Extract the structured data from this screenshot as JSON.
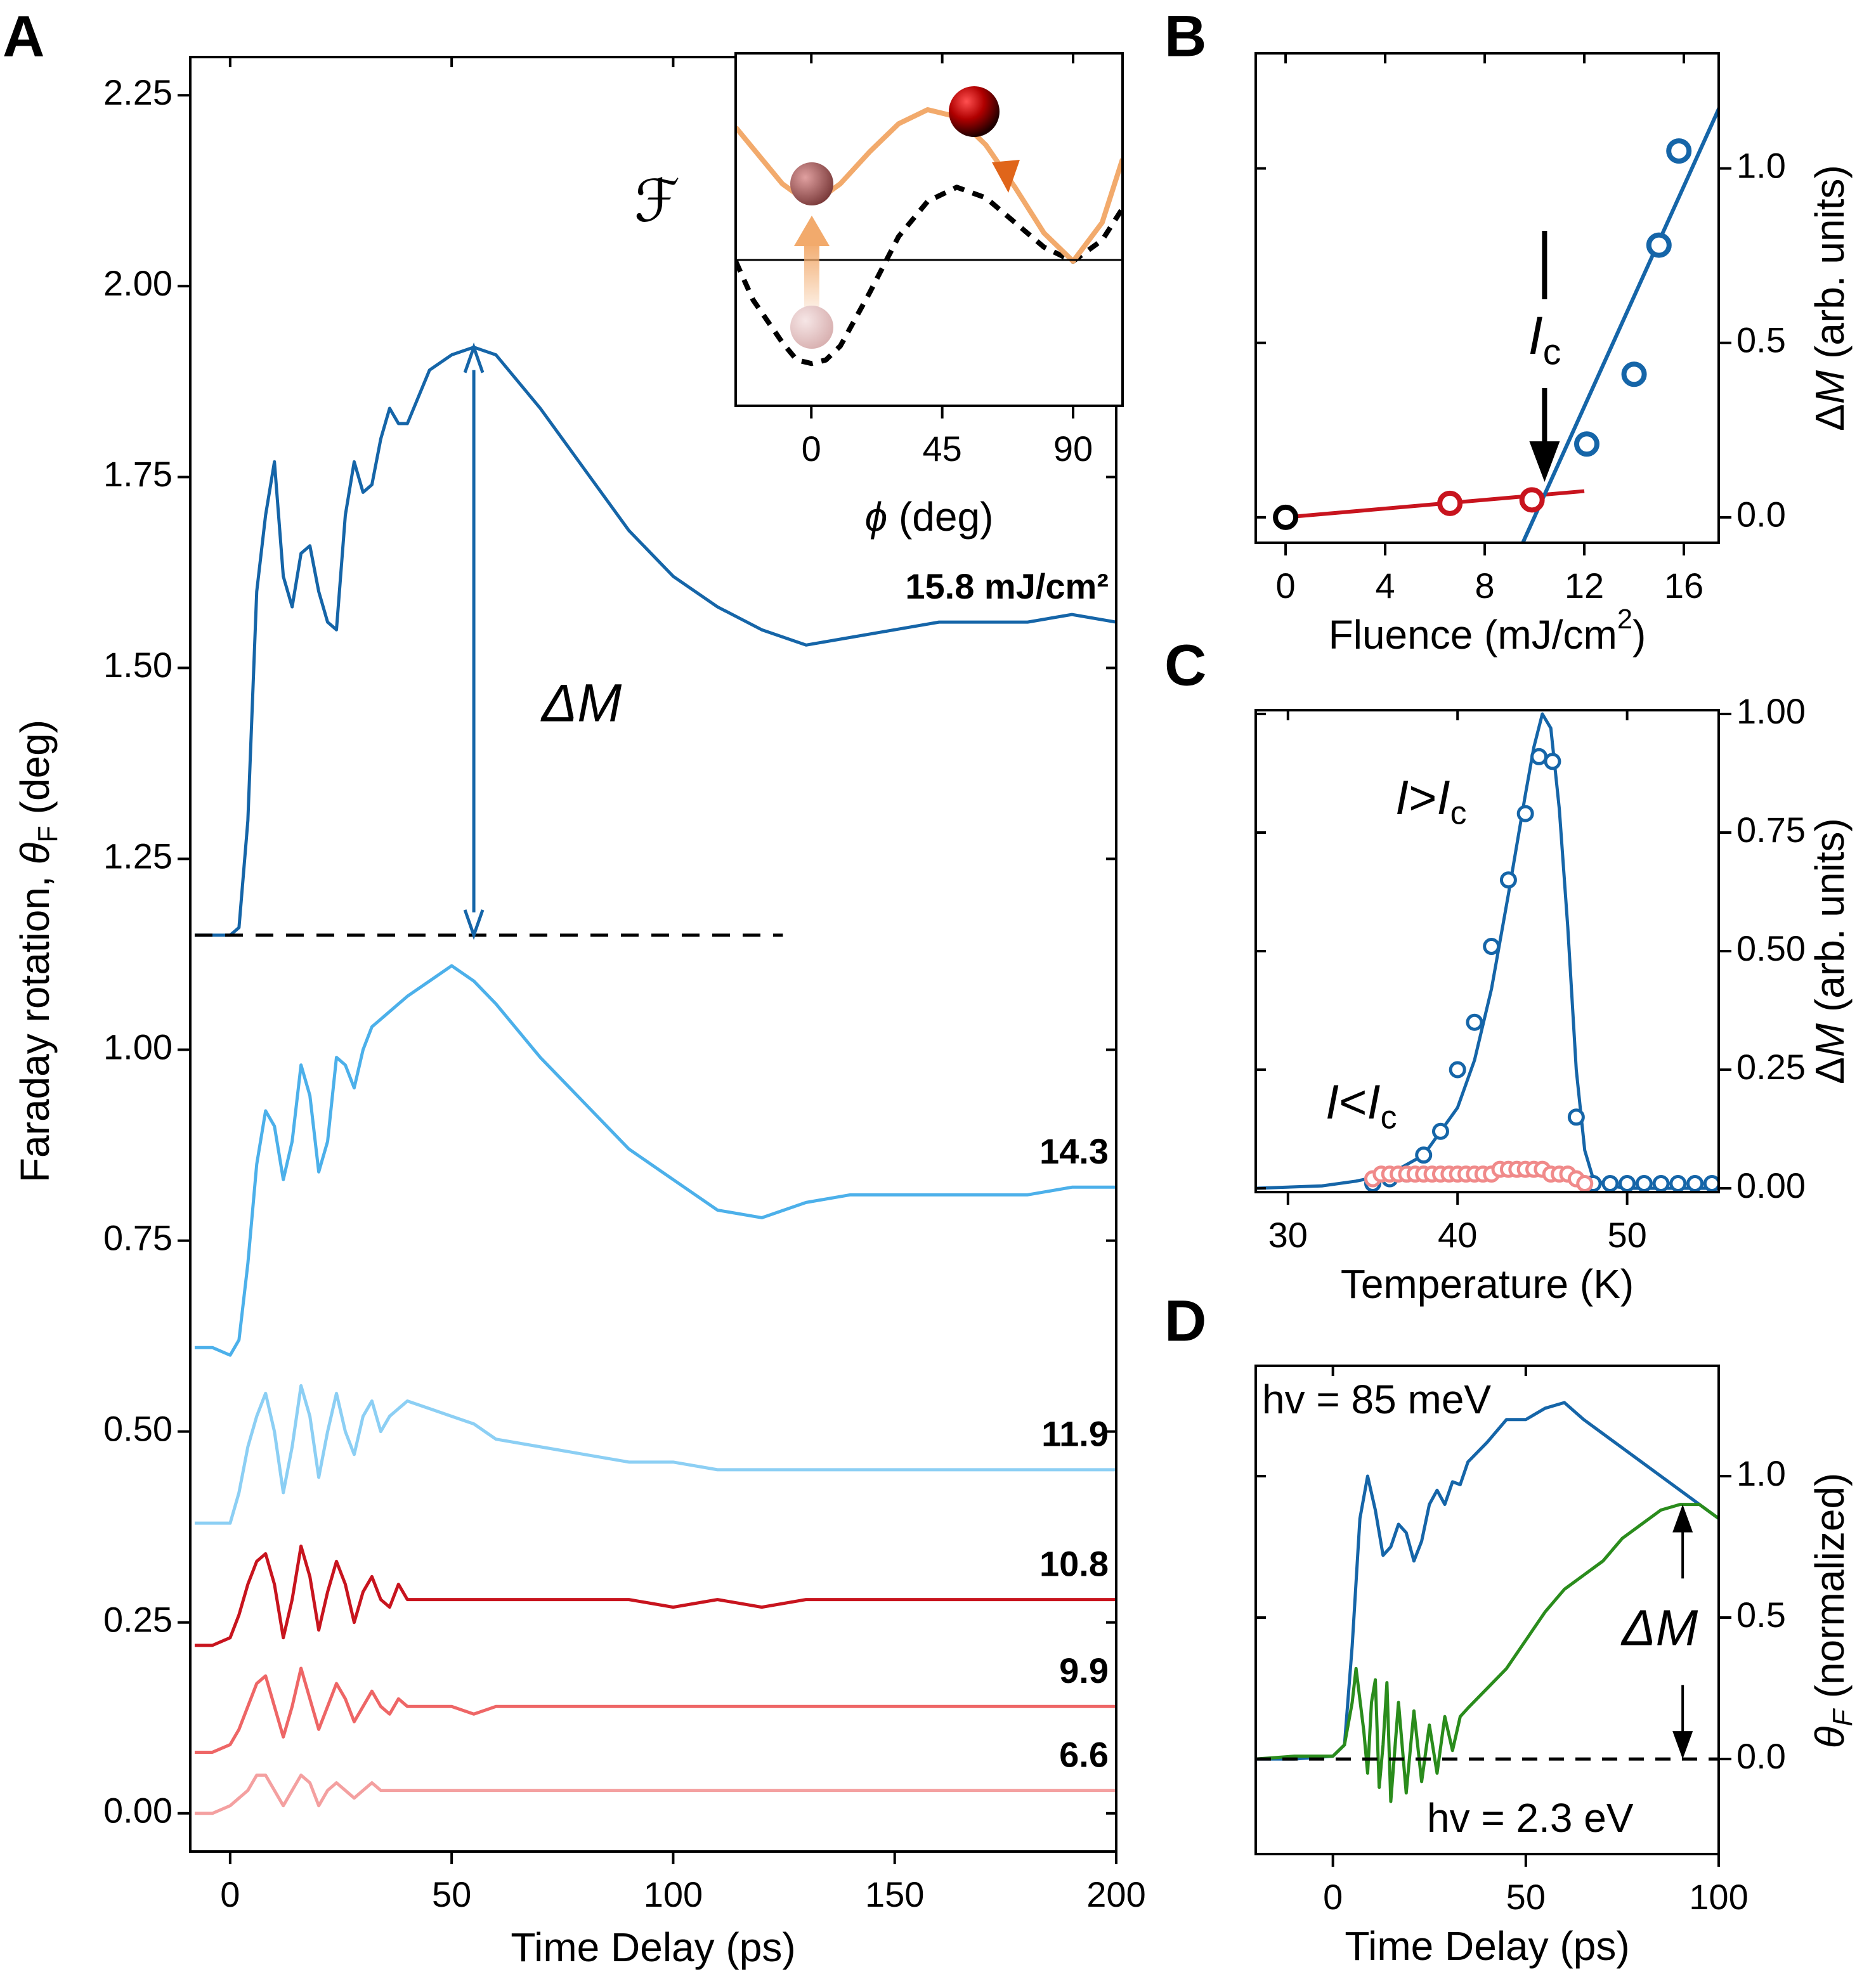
{
  "chart_data": [
    {
      "type": "line",
      "panel": "A",
      "xlabel": "Time Delay (ps)",
      "ylabel": [
        {
          "text": "Faraday  rotation, "
        },
        {
          "text": "θ",
          "style": "italic"
        },
        {
          "text": "F",
          "style": "sub"
        },
        {
          "text": " (deg)"
        }
      ],
      "annotation": "ΔM",
      "x": [
        -8,
        -4,
        0,
        2,
        4,
        6,
        8,
        10,
        12,
        14,
        16,
        18,
        20,
        22,
        24,
        26,
        28,
        30,
        32,
        34,
        36,
        38,
        40,
        45,
        50,
        55,
        60,
        70,
        80,
        90,
        100,
        110,
        120,
        130,
        140,
        150,
        160,
        170,
        180,
        190,
        200
      ],
      "xlim": [
        -9,
        200
      ],
      "xticks": [
        0,
        50,
        100,
        150,
        200
      ],
      "ylim": [
        -0.05,
        2.3
      ],
      "yticks": [
        {
          "value": 0,
          "label": "0.00"
        },
        {
          "value": 0.25,
          "label": "0.25"
        },
        {
          "value": 0.5,
          "label": "0.50"
        },
        {
          "value": 0.75,
          "label": "0.75"
        },
        {
          "value": 1,
          "label": "1.00"
        },
        {
          "value": 1.25,
          "label": "1.25"
        },
        {
          "value": 1.5,
          "label": "1.50"
        },
        {
          "value": 1.75,
          "label": "1.75"
        },
        {
          "value": 2,
          "label": "2.00"
        },
        {
          "value": 2.25,
          "label": "2.25"
        }
      ],
      "series": [
        {
          "name": "15.8 mJ/cm²",
          "color": "#1565a8",
          "values": [
            1.15,
            1.15,
            1.15,
            1.16,
            1.3,
            1.6,
            1.7,
            1.77,
            1.62,
            1.58,
            1.65,
            1.66,
            1.6,
            1.56,
            1.55,
            1.7,
            1.77,
            1.73,
            1.74,
            1.8,
            1.84,
            1.82,
            1.82,
            1.89,
            1.91,
            1.92,
            1.91,
            1.84,
            1.76,
            1.68,
            1.62,
            1.58,
            1.55,
            1.53,
            1.54,
            1.55,
            1.56,
            1.56,
            1.56,
            1.57,
            1.56
          ]
        },
        {
          "name": "14.3",
          "color": "#4cb0ea",
          "values": [
            0.61,
            0.61,
            0.6,
            0.62,
            0.72,
            0.85,
            0.92,
            0.9,
            0.83,
            0.88,
            0.98,
            0.94,
            0.84,
            0.88,
            0.99,
            0.98,
            0.95,
            1.0,
            1.03,
            1.04,
            1.05,
            1.06,
            1.07,
            1.09,
            1.11,
            1.09,
            1.06,
            0.99,
            0.93,
            0.87,
            0.83,
            0.79,
            0.78,
            0.8,
            0.81,
            0.81,
            0.81,
            0.81,
            0.81,
            0.82,
            0.82
          ]
        },
        {
          "name": "11.9",
          "color": "#8ccff4",
          "values": [
            0.38,
            0.38,
            0.38,
            0.42,
            0.48,
            0.52,
            0.55,
            0.5,
            0.42,
            0.48,
            0.56,
            0.52,
            0.44,
            0.5,
            0.55,
            0.5,
            0.47,
            0.52,
            0.54,
            0.5,
            0.52,
            0.53,
            0.54,
            0.53,
            0.52,
            0.51,
            0.49,
            0.48,
            0.47,
            0.46,
            0.46,
            0.45,
            0.45,
            0.45,
            0.45,
            0.45,
            0.45,
            0.45,
            0.45,
            0.45,
            0.45
          ]
        },
        {
          "name": "10.8",
          "color": "#c8141e",
          "values": [
            0.22,
            0.22,
            0.23,
            0.26,
            0.3,
            0.33,
            0.34,
            0.3,
            0.23,
            0.28,
            0.35,
            0.31,
            0.24,
            0.29,
            0.33,
            0.3,
            0.25,
            0.29,
            0.31,
            0.28,
            0.27,
            0.3,
            0.28,
            0.28,
            0.28,
            0.28,
            0.28,
            0.28,
            0.28,
            0.28,
            0.27,
            0.28,
            0.27,
            0.28,
            0.28,
            0.28,
            0.28,
            0.28,
            0.28,
            0.28,
            0.28
          ]
        },
        {
          "name": "9.9",
          "color": "#ee6666",
          "values": [
            0.08,
            0.08,
            0.09,
            0.11,
            0.14,
            0.17,
            0.18,
            0.14,
            0.1,
            0.14,
            0.19,
            0.15,
            0.11,
            0.14,
            0.17,
            0.15,
            0.12,
            0.14,
            0.16,
            0.14,
            0.13,
            0.15,
            0.14,
            0.14,
            0.14,
            0.13,
            0.14,
            0.14,
            0.14,
            0.14,
            0.14,
            0.14,
            0.14,
            0.14,
            0.14,
            0.14,
            0.14,
            0.14,
            0.14,
            0.14,
            0.14
          ]
        },
        {
          "name": "6.6",
          "color": "#f4a0a0",
          "values": [
            0.0,
            0.0,
            0.01,
            0.02,
            0.03,
            0.05,
            0.05,
            0.03,
            0.01,
            0.03,
            0.05,
            0.04,
            0.01,
            0.03,
            0.04,
            0.03,
            0.02,
            0.03,
            0.04,
            0.03,
            0.03,
            0.03,
            0.03,
            0.03,
            0.03,
            0.03,
            0.03,
            0.03,
            0.03,
            0.03,
            0.03,
            0.03,
            0.03,
            0.03,
            0.03,
            0.03,
            0.03,
            0.03,
            0.03,
            0.03,
            0.03
          ]
        }
      ]
    },
    {
      "type": "line",
      "xlabel": [
        {
          "text": "ϕ",
          "style": "italic"
        },
        {
          "text": " (deg)"
        }
      ],
      "ylabel": "ℱ",
      "x": [
        -26,
        -20,
        -10,
        -5,
        0,
        5,
        10,
        20,
        30,
        40,
        50,
        60,
        70,
        80,
        90,
        100,
        107
      ],
      "xlim": [
        -26,
        107
      ],
      "xticks": [
        0,
        45,
        90
      ],
      "ylim": [
        0,
        100
      ],
      "series": [
        {
          "color": "#000000",
          "dashed": true,
          "values": [
            41,
            30,
            18,
            13,
            12,
            13,
            17,
            32,
            48,
            58,
            62,
            59,
            52,
            45,
            41,
            47,
            56
          ]
        },
        {
          "color": "#f2aa6c",
          "values": [
            79,
            73,
            63,
            60,
            59,
            60,
            63,
            72,
            80,
            84,
            82,
            74,
            62,
            49,
            41,
            52,
            70
          ]
        }
      ]
    },
    {
      "type": "scatter",
      "panel": "B",
      "xlabel": [
        {
          "text": "Fluence (mJ/cm"
        },
        {
          "text": "2",
          "style": "sup"
        },
        {
          "text": ")"
        }
      ],
      "ylabel": [
        {
          "text": "Δ"
        },
        {
          "text": "M",
          "style": "italic"
        },
        {
          "text": " (arb. units)"
        }
      ],
      "annotation": [
        {
          "text": "I",
          "style": "italic"
        },
        {
          "text": "c",
          "style": "sub"
        }
      ],
      "xlim": [
        -1.2,
        17.4
      ],
      "xticks": [
        0,
        4,
        8,
        12,
        16
      ],
      "ylim": [
        -0.073,
        1.33
      ],
      "yticks": [
        {
          "value": 0,
          "label": "0.0"
        },
        {
          "value": 0.5,
          "label": "0.5"
        },
        {
          "value": 1,
          "label": "1.0"
        }
      ],
      "series": [
        {
          "color": "#c8141e",
          "style": "line",
          "x": [
            0,
            12
          ],
          "values": [
            0,
            0.075
          ]
        },
        {
          "color": "#1565a8",
          "style": "line",
          "x": [
            9.53,
            17.43
          ],
          "values": [
            -0.073,
            1.175
          ]
        },
        {
          "color": "#c8141e",
          "style": "markers",
          "x": [
            6.6,
            9.9
          ],
          "values": [
            0.04,
            0.05
          ]
        },
        {
          "color": "#1565a8",
          "style": "markers",
          "x": [
            12.1,
            14.0,
            15.0,
            15.8
          ],
          "values": [
            0.21,
            0.41,
            0.78,
            1.05
          ]
        },
        {
          "color": "#000000",
          "style": "markers",
          "x": [
            0
          ],
          "values": [
            0
          ]
        }
      ]
    },
    {
      "type": "scatter",
      "panel": "C",
      "xlabel": "Temperature (K)",
      "ylabel": [
        {
          "text": "Δ"
        },
        {
          "text": "M",
          "style": "italic"
        },
        {
          "text": " (arb. units)"
        }
      ],
      "annotations": [
        [
          {
            "text": "I",
            "style": "italic"
          },
          {
            "text": ">"
          },
          {
            "text": "I",
            "style": "italic"
          },
          {
            "text": "c",
            "style": "sub"
          }
        ],
        [
          {
            "text": "I",
            "style": "italic"
          },
          {
            "text": "<"
          },
          {
            "text": "I",
            "style": "italic"
          },
          {
            "text": "c",
            "style": "sub"
          }
        ]
      ],
      "xlim": [
        28.1,
        55.4
      ],
      "xticks": [
        30,
        40,
        50
      ],
      "ylim": [
        -0.008,
        1.008
      ],
      "yticks": [
        {
          "value": 0,
          "label": "0.00"
        },
        {
          "value": 0.25,
          "label": "0.25"
        },
        {
          "value": 0.5,
          "label": "0.50"
        },
        {
          "value": 0.75,
          "label": "0.75"
        },
        {
          "value": 1,
          "label": "1.00"
        }
      ],
      "series": [
        {
          "color": "#1565a8",
          "style": "line",
          "x": [
            28.1,
            32,
            34,
            36,
            38,
            40,
            41,
            42,
            43,
            44,
            44.5,
            45,
            45.5,
            46,
            46.5,
            47,
            47.5,
            48,
            49,
            50,
            55.4
          ],
          "values": [
            0,
            0.005,
            0.015,
            0.03,
            0.07,
            0.17,
            0.27,
            0.42,
            0.62,
            0.83,
            0.93,
            1.0,
            0.97,
            0.8,
            0.55,
            0.25,
            0.08,
            0.02,
            0.005,
            0,
            0
          ]
        },
        {
          "color": "#1565a8",
          "style": "markers",
          "x": [
            35,
            36,
            37,
            38,
            39,
            40,
            41,
            42,
            43,
            44,
            44.8,
            45.6,
            47,
            48,
            49,
            50,
            51,
            52,
            53,
            54,
            55
          ],
          "values": [
            0.01,
            0.02,
            0.03,
            0.07,
            0.12,
            0.25,
            0.35,
            0.51,
            0.65,
            0.79,
            0.91,
            0.9,
            0.15,
            0.01,
            0.01,
            0.01,
            0.01,
            0.01,
            0.01,
            0.01,
            0.01
          ]
        },
        {
          "color": "#f08a8a",
          "style": "markers",
          "x": [
            35,
            35.5,
            36,
            36.5,
            37,
            37.5,
            38,
            38.5,
            39,
            39.5,
            40,
            40.5,
            41,
            41.5,
            42,
            42.5,
            43,
            43.5,
            44,
            44.5,
            45,
            45.5,
            46,
            46.5,
            47,
            47.5
          ],
          "values": [
            0.02,
            0.03,
            0.03,
            0.03,
            0.03,
            0.03,
            0.03,
            0.03,
            0.03,
            0.03,
            0.03,
            0.03,
            0.03,
            0.03,
            0.03,
            0.04,
            0.04,
            0.04,
            0.04,
            0.04,
            0.04,
            0.03,
            0.03,
            0.03,
            0.02,
            0.01
          ]
        }
      ]
    },
    {
      "type": "line",
      "panel": "D",
      "xlabel": "Time Delay (ps)",
      "ylabel": [
        {
          "text": "θ",
          "style": "italic"
        },
        {
          "text": "F",
          "style": "italic sub"
        },
        {
          "text": " (normalized)"
        }
      ],
      "annotation": "ΔM",
      "xlim": [
        -20,
        100
      ],
      "xticks": [
        0,
        50,
        100
      ],
      "ylim": [
        -0.336,
        1.39
      ],
      "yticks": [
        {
          "value": 0,
          "label": "0.0"
        },
        {
          "value": 0.5,
          "label": "0.5"
        },
        {
          "value": 1,
          "label": "1.0"
        }
      ],
      "series": [
        {
          "name": "hv = 85 meV",
          "color": "#1565a8",
          "x": [
            -20,
            -10,
            0,
            3,
            5,
            7,
            9,
            11,
            13,
            15,
            17,
            19,
            21,
            23,
            25,
            27,
            29,
            31,
            33,
            35,
            40,
            45,
            50,
            55,
            60,
            65,
            70,
            75,
            80,
            85,
            90,
            95,
            100
          ],
          "values": [
            0,
            0,
            0.01,
            0.05,
            0.4,
            0.85,
            1.0,
            0.88,
            0.72,
            0.75,
            0.83,
            0.8,
            0.7,
            0.77,
            0.9,
            0.95,
            0.9,
            0.98,
            0.97,
            1.05,
            1.12,
            1.2,
            1.2,
            1.24,
            1.26,
            1.2,
            1.15,
            1.1,
            1.05,
            1.0,
            0.95,
            0.9,
            0.85
          ]
        },
        {
          "name": "hv = 2.3 eV",
          "color": "#2a8c1c",
          "x": [
            -20,
            -10,
            0,
            3,
            5,
            6,
            8,
            9,
            10,
            11,
            12,
            13,
            14,
            15,
            17,
            19,
            21,
            23,
            25,
            27,
            29,
            31,
            33,
            35,
            40,
            45,
            50,
            55,
            60,
            65,
            70,
            75,
            80,
            85,
            90,
            95,
            100
          ],
          "values": [
            0,
            0.01,
            0.01,
            0.05,
            0.2,
            0.32,
            0.1,
            -0.05,
            0.2,
            0.28,
            -0.1,
            0.05,
            0.27,
            -0.15,
            0.2,
            -0.12,
            0.17,
            -0.08,
            0.12,
            -0.05,
            0.15,
            0.03,
            0.15,
            0.18,
            0.25,
            0.32,
            0.42,
            0.52,
            0.6,
            0.65,
            0.7,
            0.78,
            0.83,
            0.88,
            0.9,
            0.9,
            0.85
          ]
        }
      ]
    }
  ]
}
